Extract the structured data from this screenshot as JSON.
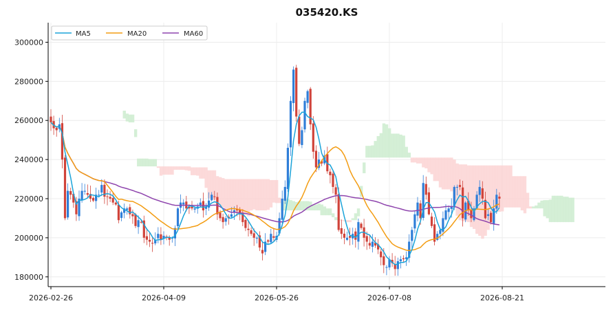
{
  "chart_data": {
    "type": "candlestick",
    "title": "035420.KS",
    "xlabel": "",
    "ylabel": "",
    "ylim": [
      175000,
      310000
    ],
    "y_ticks": [
      180000,
      200000,
      220000,
      240000,
      260000,
      280000,
      300000
    ],
    "y_tick_labels": [
      "180000",
      "200000",
      "220000",
      "240000",
      "260000",
      "280000",
      "300000"
    ],
    "x_ticks": [
      "2026-02-26",
      "2026-04-09",
      "2026-05-26",
      "2026-07-08",
      "2026-08-21"
    ],
    "legend": {
      "position": "top-left",
      "entries": [
        "MA5",
        "MA20",
        "MA60"
      ]
    },
    "colors": {
      "up": "#2f7ed8",
      "down": "#d0433a",
      "ma5": "#1aa3d9",
      "ma20": "#f39c12",
      "ma60": "#8e44ad",
      "cloud_bull": "#cdeccf",
      "cloud_bear": "#fbd3d3",
      "grid": "#ececec"
    },
    "grid": true,
    "closes": [
      259000,
      256000,
      255000,
      258000,
      240000,
      210000,
      224000,
      222000,
      218000,
      212000,
      220000,
      224000,
      224000,
      222000,
      220000,
      219000,
      222000,
      222000,
      227000,
      221000,
      221000,
      220000,
      218000,
      217000,
      209000,
      213000,
      215000,
      215000,
      212000,
      211000,
      206000,
      209000,
      208000,
      200000,
      199000,
      198000,
      197000,
      199000,
      202000,
      199000,
      201000,
      200000,
      199000,
      200000,
      205000,
      215000,
      218000,
      218000,
      215000,
      215000,
      215000,
      215000,
      216000,
      218000,
      214000,
      216000,
      219000,
      222000,
      221000,
      212000,
      210000,
      208000,
      210000,
      210000,
      212000,
      214000,
      214000,
      212000,
      208000,
      205000,
      204000,
      202000,
      200000,
      200000,
      195000,
      192000,
      198000,
      198000,
      202000,
      200000,
      201000,
      210000,
      220000,
      226000,
      246000,
      270000,
      286000,
      262000,
      248000,
      255000,
      270000,
      275000,
      258000,
      244000,
      236000,
      240000,
      238000,
      242000,
      234000,
      232000,
      226000,
      222000,
      204000,
      202000,
      200000,
      200000,
      200000,
      202000,
      199000,
      208000,
      205000,
      200000,
      198000,
      196000,
      198000,
      196000,
      194000,
      190000,
      186000,
      185000,
      189000,
      187000,
      184000,
      188000,
      189000,
      189000,
      190000,
      198000,
      204000,
      212000,
      218000,
      210000,
      228000,
      222000,
      212000,
      206000,
      198000,
      202000,
      204000,
      210000,
      214000,
      215000,
      216000,
      226000,
      226000,
      226000,
      210000,
      218000,
      214000,
      210000,
      215000,
      222000,
      226000,
      220000,
      210000,
      212000,
      208000,
      215000,
      222000,
      220000
    ]
  }
}
